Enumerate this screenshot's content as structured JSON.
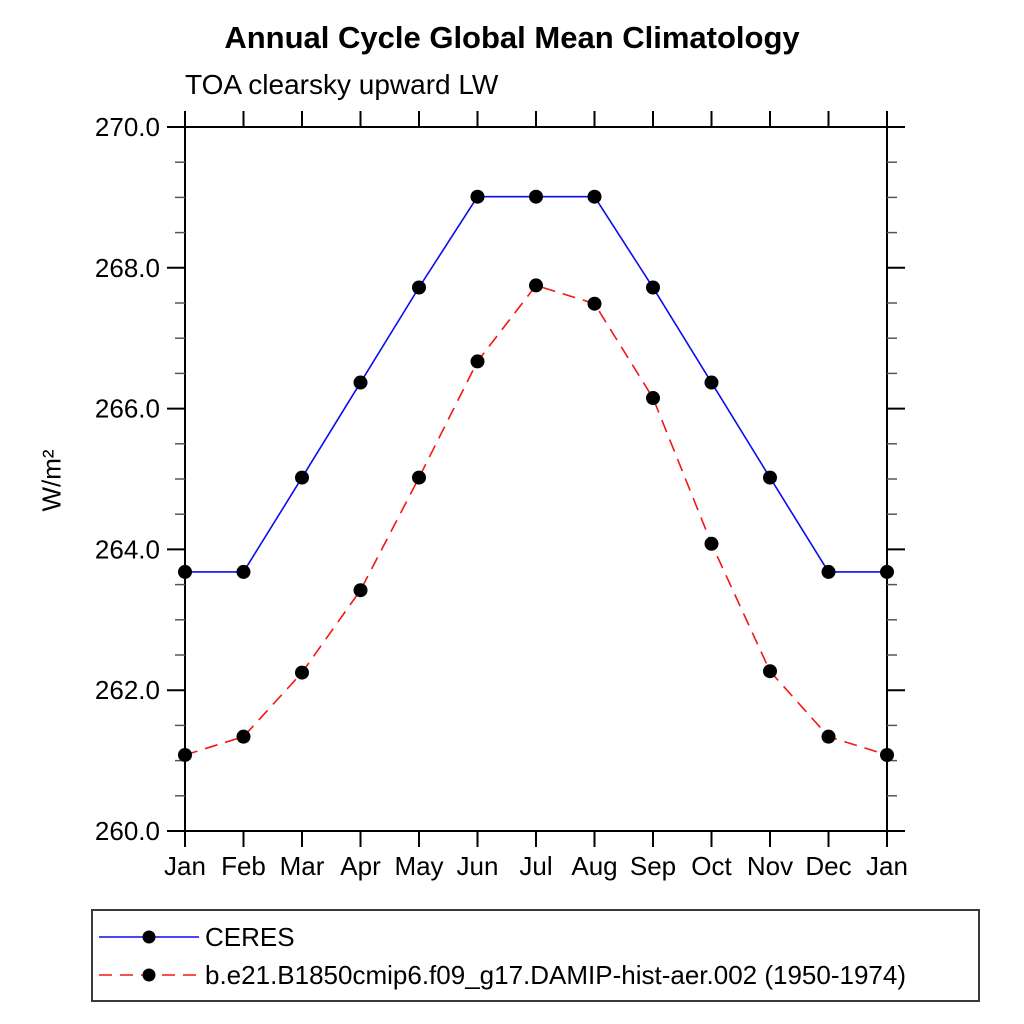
{
  "chart_data": {
    "type": "line",
    "title": "Annual Cycle Global Mean Climatology",
    "subtitle": "TOA clearsky upward LW",
    "ylabel": "W/m²",
    "xlabel": "",
    "categories": [
      "Jan",
      "Feb",
      "Mar",
      "Apr",
      "May",
      "Jun",
      "Jul",
      "Aug",
      "Sep",
      "Oct",
      "Nov",
      "Dec",
      "Jan"
    ],
    "ylim": [
      260.0,
      270.0
    ],
    "ytick_values": [
      260,
      262,
      264,
      266,
      268,
      270
    ],
    "ytick_labels": [
      "260.0",
      "262.0",
      "264.0",
      "266.0",
      "268.0",
      "270.0"
    ],
    "yminor_step": 0.5,
    "grid": false,
    "legend_position": "bottom-left-box",
    "axis_color": "#000000",
    "marker": {
      "shape": "circle",
      "color": "#000000",
      "radius": 7
    },
    "series": [
      {
        "name": "CERES",
        "color": "#0b0bf0",
        "style": "solid",
        "values": [
          263.68,
          263.68,
          265.02,
          266.37,
          267.72,
          269.01,
          269.01,
          269.01,
          267.72,
          266.37,
          265.02,
          263.68,
          263.68
        ]
      },
      {
        "name": "b.e21.B1850cmip6.f09_g17.DAMIP-hist-aer.002 (1950-1974)",
        "color": "#f51515",
        "style": "dashed",
        "values": [
          261.08,
          261.34,
          262.25,
          263.42,
          265.02,
          266.67,
          267.75,
          267.49,
          266.15,
          264.08,
          262.27,
          261.34,
          261.08
        ]
      }
    ]
  }
}
